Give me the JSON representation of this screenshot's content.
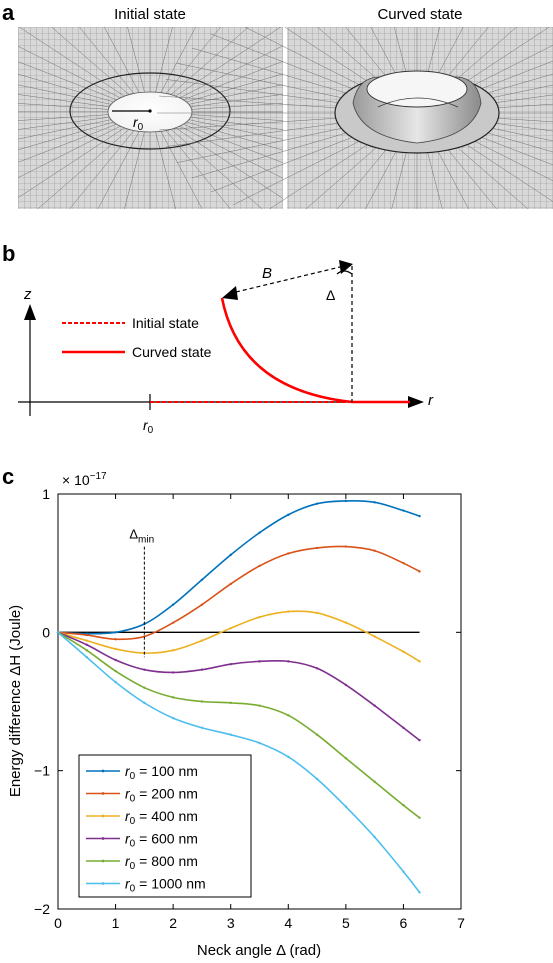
{
  "panel_a": {
    "label": "a",
    "left_title": "Initial state",
    "right_title": "Curved state",
    "radius_label_base": "r",
    "radius_label_sub": "0"
  },
  "panel_b": {
    "label": "b",
    "z_label": "z",
    "r_label": "r",
    "r0_base": "r",
    "r0_sub": "0",
    "B_label": "B",
    "delta_label": "Δ",
    "legend": [
      {
        "label": "Initial state",
        "style": "dashed",
        "color": "#ff0000"
      },
      {
        "label": "Curved state",
        "style": "solid",
        "color": "#ff0000"
      }
    ]
  },
  "panel_c": {
    "label": "c"
  },
  "chart_data": {
    "type": "line",
    "exponent_label": "× 10",
    "exponent_power": "−17",
    "xlabel": "Neck angle Δ (rad)",
    "ylabel": "Energy difference ΔH (Joule)",
    "xlim": [
      0,
      7
    ],
    "ylim": [
      -2,
      1
    ],
    "xticks": [
      "0",
      "1",
      "2",
      "3",
      "4",
      "5",
      "6",
      "7"
    ],
    "yticks": [
      {
        "value": 1,
        "label": "1"
      },
      {
        "value": 0,
        "label": "0"
      },
      {
        "value": -1,
        "label": "−1"
      },
      {
        "value": -2,
        "label": "−2"
      }
    ],
    "annotation": {
      "base": "Δ",
      "sub": "min",
      "x": 1.5
    },
    "zero_line": true,
    "legend_position": "bottom-left",
    "legend_prefix": "r",
    "legend_sub": "0",
    "series": [
      {
        "name": " = 100 nm",
        "color": "#0072bd",
        "x": [
          0,
          0.5,
          1.0,
          1.5,
          2.0,
          2.5,
          3.0,
          3.5,
          4.0,
          4.5,
          5.0,
          5.5,
          6.0,
          6.28
        ],
        "y": [
          0,
          -0.01,
          0.0,
          0.06,
          0.2,
          0.38,
          0.56,
          0.72,
          0.85,
          0.93,
          0.95,
          0.94,
          0.88,
          0.84
        ]
      },
      {
        "name": " = 200 nm",
        "color": "#d95319",
        "x": [
          0,
          0.5,
          1.0,
          1.5,
          2.0,
          2.5,
          3.0,
          3.5,
          4.0,
          4.5,
          5.0,
          5.5,
          6.0,
          6.28
        ],
        "y": [
          0,
          -0.02,
          -0.05,
          -0.03,
          0.07,
          0.2,
          0.35,
          0.48,
          0.57,
          0.61,
          0.62,
          0.59,
          0.5,
          0.44
        ]
      },
      {
        "name": " = 400 nm",
        "color": "#edb120",
        "x": [
          0,
          0.5,
          1.0,
          1.5,
          2.0,
          2.5,
          3.0,
          3.5,
          4.0,
          4.5,
          5.0,
          5.5,
          6.0,
          6.28
        ],
        "y": [
          0,
          -0.06,
          -0.12,
          -0.15,
          -0.13,
          -0.06,
          0.03,
          0.11,
          0.15,
          0.14,
          0.07,
          -0.03,
          -0.14,
          -0.21
        ]
      },
      {
        "name": " = 600 nm",
        "color": "#7e2f8e",
        "x": [
          0,
          0.5,
          1.0,
          1.5,
          2.0,
          2.5,
          3.0,
          3.5,
          4.0,
          4.5,
          5.0,
          5.5,
          6.0,
          6.28
        ],
        "y": [
          0,
          -0.09,
          -0.2,
          -0.27,
          -0.29,
          -0.27,
          -0.23,
          -0.21,
          -0.21,
          -0.26,
          -0.38,
          -0.53,
          -0.69,
          -0.78
        ]
      },
      {
        "name": " = 800 nm",
        "color": "#77ac30",
        "x": [
          0,
          0.5,
          1.0,
          1.5,
          2.0,
          2.5,
          3.0,
          3.5,
          4.0,
          4.5,
          5.0,
          5.5,
          6.0,
          6.28
        ],
        "y": [
          0,
          -0.13,
          -0.28,
          -0.4,
          -0.47,
          -0.5,
          -0.51,
          -0.53,
          -0.6,
          -0.74,
          -0.91,
          -1.08,
          -1.25,
          -1.34
        ]
      },
      {
        "name": " = 1000 nm",
        "color": "#4dbeee",
        "x": [
          0,
          0.5,
          1.0,
          1.5,
          2.0,
          2.5,
          3.0,
          3.5,
          4.0,
          4.5,
          5.0,
          5.5,
          6.0,
          6.28
        ],
        "y": [
          0,
          -0.18,
          -0.36,
          -0.51,
          -0.62,
          -0.69,
          -0.74,
          -0.8,
          -0.9,
          -1.06,
          -1.26,
          -1.48,
          -1.73,
          -1.88
        ]
      }
    ]
  }
}
